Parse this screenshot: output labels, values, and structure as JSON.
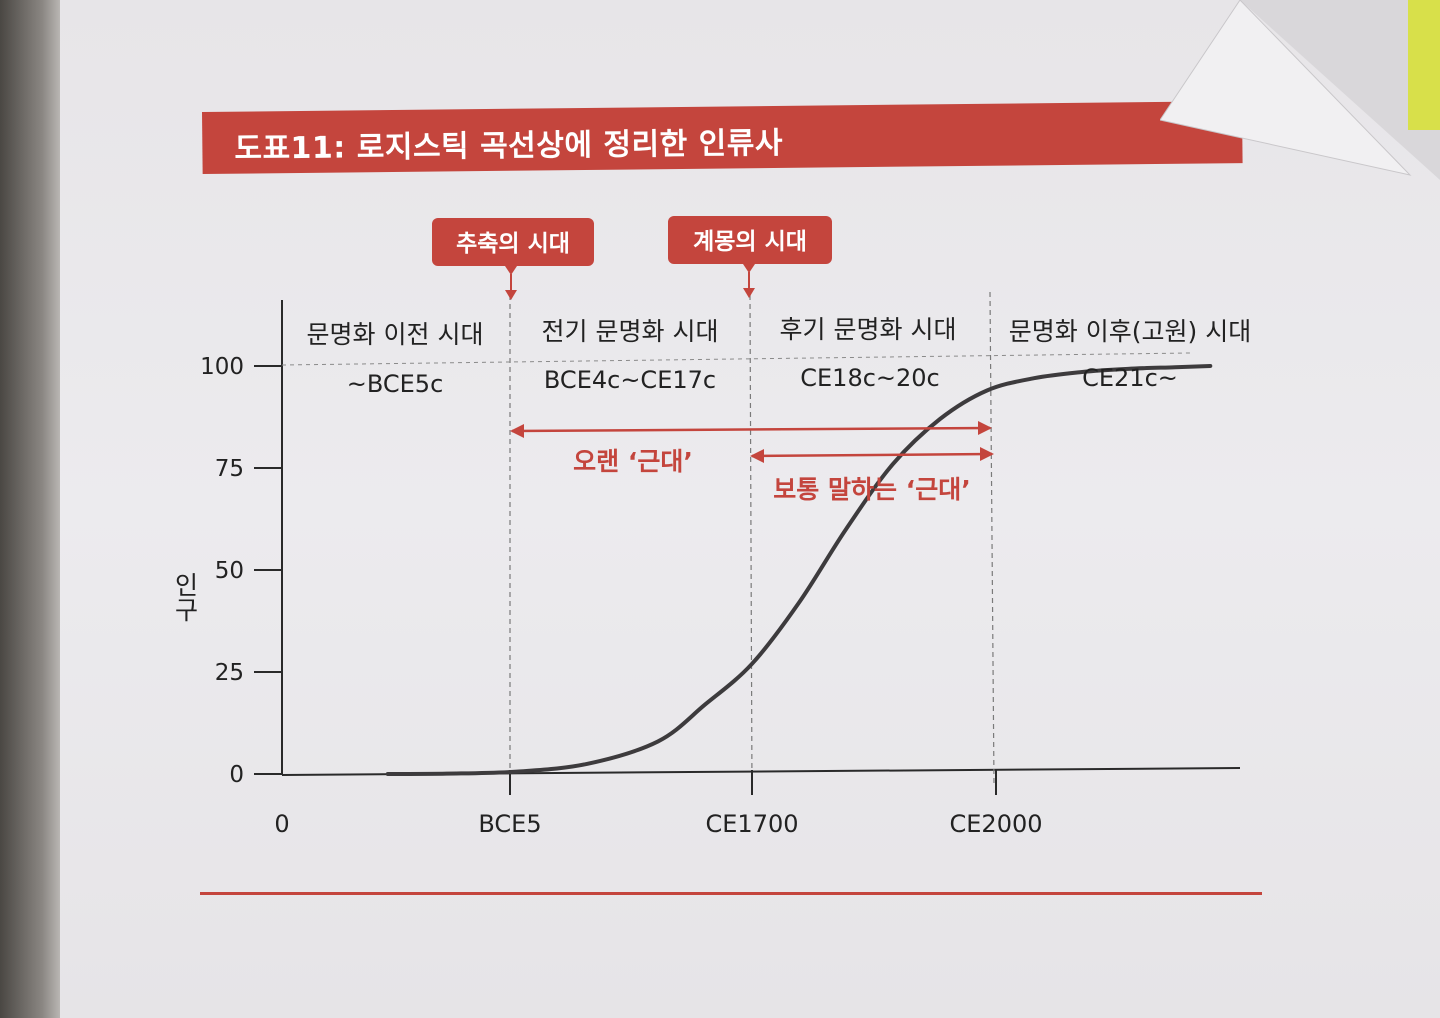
{
  "title": "도표11: 로지스틱 곡선상에 정리한 인류사",
  "colors": {
    "accent": "#c4453d",
    "curve": "#3d3b3d",
    "axis": "#2a2a2a",
    "dashed": "#7a7a7a"
  },
  "chart_data": {
    "type": "line",
    "title": "도표11: 로지스틱 곡선상에 정리한 인류사",
    "xlabel": "",
    "ylabel": "인구",
    "ylim": [
      0,
      100
    ],
    "yticks": [
      0,
      25,
      50,
      75,
      100
    ],
    "xtick_labels": [
      "0",
      "BCE5",
      "CE1700",
      "CE2000"
    ],
    "grid": false,
    "series": [
      {
        "x": [
          0.45,
          0.7,
          1.0,
          1.3,
          1.6,
          1.8,
          2.0,
          2.2,
          2.4,
          2.6,
          2.8,
          3.0,
          3.2,
          3.4,
          3.6,
          3.8,
          3.95
        ],
        "y": [
          0,
          0.1,
          0.6,
          2.5,
          8,
          17,
          27,
          42,
          60,
          76,
          87,
          94,
          97,
          98.5,
          99.3,
          99.7,
          100
        ]
      }
    ],
    "eras": [
      {
        "name": "문명화 이전 시대",
        "period": "~BCE5c"
      },
      {
        "name": "전기 문명화 시대",
        "period": "BCE4c~CE17c"
      },
      {
        "name": "후기 문명화 시대",
        "period": "CE18c~20c"
      },
      {
        "name": "문명화 이후(고원) 시대",
        "period": "CE21c~"
      }
    ],
    "markers": [
      "추축의 시대",
      "계몽의 시대"
    ],
    "annotations": [
      "오랜 ‘근대’",
      "보통 말하는 ‘근대’"
    ]
  }
}
